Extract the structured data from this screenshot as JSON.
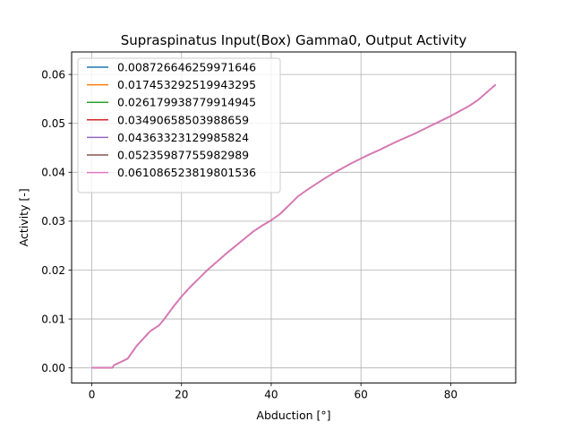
{
  "chart_data": {
    "type": "line",
    "title": "Supraspinatus Input(Box) Gamma0, Output Activity",
    "xlabel": "Abduction [°]",
    "ylabel": "Activity [-]",
    "xlim": [
      -4.5,
      94.5
    ],
    "ylim": [
      -0.0031,
      0.0646
    ],
    "xticks": [
      0,
      20,
      40,
      60,
      80
    ],
    "xtick_labels": [
      "0",
      "20",
      "40",
      "60",
      "80"
    ],
    "yticks": [
      0.0,
      0.01,
      0.02,
      0.03,
      0.04,
      0.05,
      0.06
    ],
    "ytick_labels": [
      "0.00",
      "0.01",
      "0.02",
      "0.03",
      "0.04",
      "0.05",
      "0.06"
    ],
    "grid": true,
    "legend_position": "top-left",
    "x": [
      0,
      2,
      4.5,
      5,
      6,
      8,
      10,
      12,
      13,
      14,
      15,
      16,
      18,
      20,
      22,
      24,
      26,
      28,
      30,
      32,
      34,
      36,
      38,
      40,
      42,
      44,
      46,
      48,
      50,
      52,
      54,
      56,
      58,
      60,
      62,
      64,
      66,
      68,
      70,
      72,
      74,
      76,
      78,
      80,
      82,
      84,
      86,
      88,
      90
    ],
    "series": [
      {
        "name": "0.008726646259971646",
        "color": "#1f77b4"
      },
      {
        "name": "0.017453292519943295",
        "color": "#ff7f0e"
      },
      {
        "name": "0.026179938779914945",
        "color": "#2ca02c"
      },
      {
        "name": "0.03490658503988659",
        "color": "#d62728"
      },
      {
        "name": "0.04363323129985824",
        "color": "#9467bd"
      },
      {
        "name": "0.05235987755982989",
        "color": "#8c564b"
      },
      {
        "name": "0.061086523819801536",
        "color": "#e377c2"
      }
    ],
    "values": [
      0.0,
      0.0,
      0.0,
      0.0006,
      0.001,
      0.0019,
      0.0045,
      0.0065,
      0.0075,
      0.0081,
      0.0087,
      0.0098,
      0.0123,
      0.0146,
      0.0166,
      0.0184,
      0.0202,
      0.0218,
      0.0234,
      0.0249,
      0.0264,
      0.0279,
      0.0291,
      0.0302,
      0.0315,
      0.0333,
      0.0351,
      0.0364,
      0.0376,
      0.0388,
      0.0399,
      0.0409,
      0.0419,
      0.0428,
      0.0437,
      0.0445,
      0.0454,
      0.0463,
      0.0471,
      0.0479,
      0.0488,
      0.0497,
      0.0506,
      0.0515,
      0.0525,
      0.0535,
      0.0547,
      0.0563,
      0.0579
    ]
  }
}
